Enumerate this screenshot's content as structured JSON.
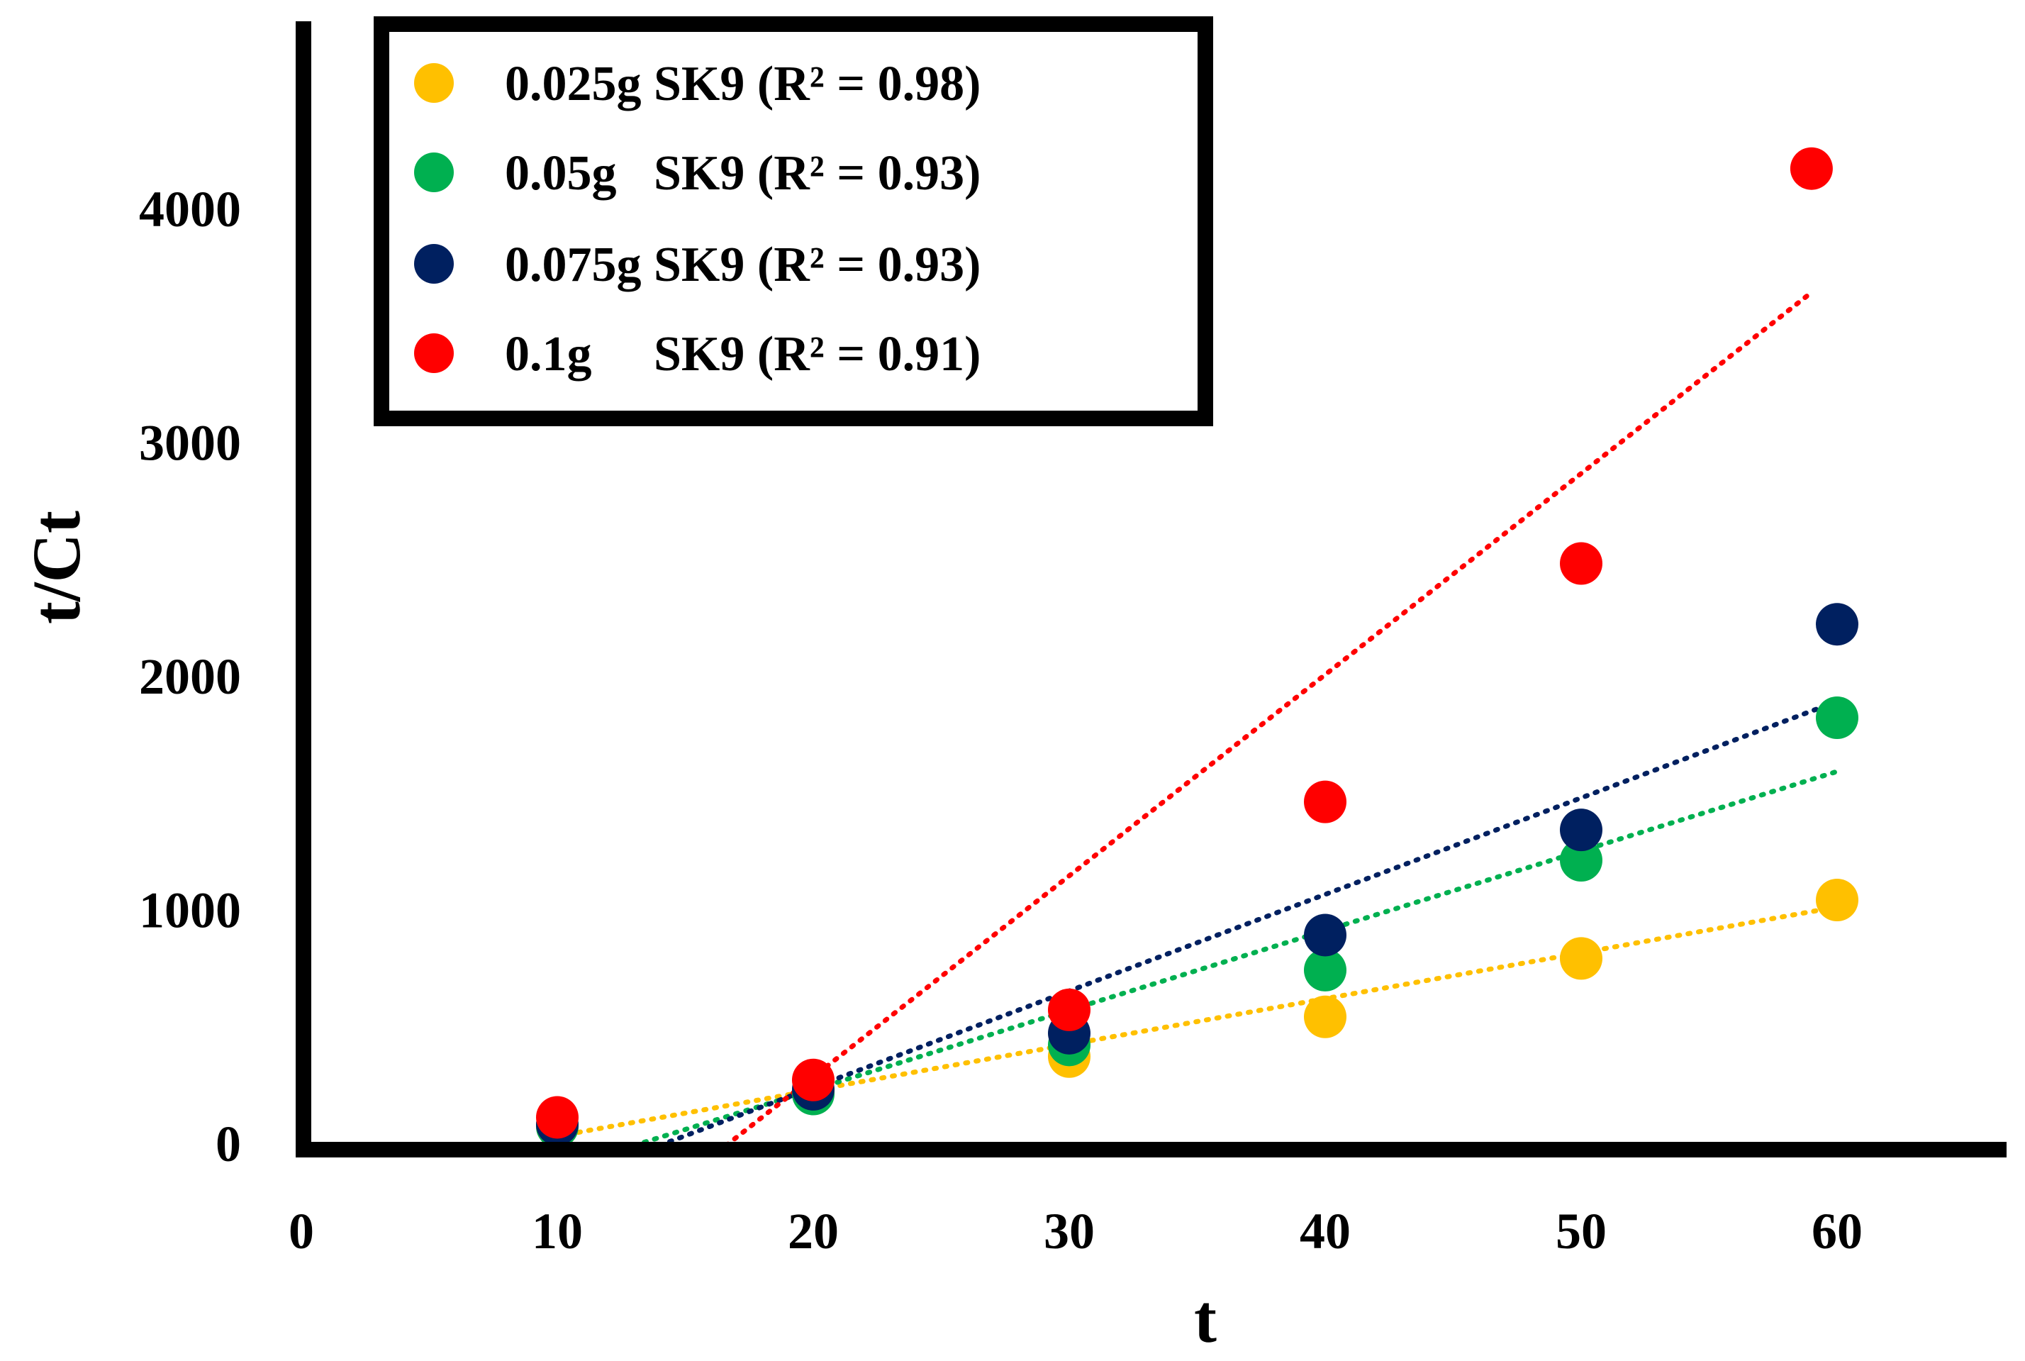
{
  "chart_data": {
    "type": "scatter",
    "title": "",
    "xlabel": "t",
    "ylabel": "t/Ct",
    "xlim": [
      0,
      66
    ],
    "ylim": [
      0,
      4800
    ],
    "xticks": [
      0,
      10,
      20,
      30,
      40,
      50,
      60
    ],
    "xtick_labels": [
      "0",
      "10",
      "20",
      "30",
      "40",
      "50",
      "60"
    ],
    "yticks": [
      0,
      1000,
      2000,
      3000,
      4000
    ],
    "ytick_labels": [
      "0",
      "1000",
      "2000",
      "3000",
      "4000"
    ],
    "grid": false,
    "legend_position": "top-left",
    "series": [
      {
        "name": "0.025g SK9",
        "legend_label": "0.025g SK9 (R² = 0.98)",
        "r2": 0.98,
        "color": "#FFC000",
        "x": [
          10,
          20,
          30,
          40,
          50,
          60
        ],
        "y": [
          80,
          230,
          380,
          550,
          800,
          1050
        ],
        "trendline": {
          "x": [
            10,
            60
          ],
          "y": [
            40,
            1020
          ]
        }
      },
      {
        "name": "0.05g SK9",
        "legend_label": "0.05g   SK9 (R² = 0.93)",
        "r2": 0.93,
        "color": "#00B050",
        "x": [
          10,
          20,
          30,
          40,
          50,
          60
        ],
        "y": [
          80,
          220,
          430,
          750,
          1220,
          1830
        ],
        "trendline": {
          "x": [
            13,
            60
          ],
          "y": [
            0,
            1600
          ]
        }
      },
      {
        "name": "0.075g SK9",
        "legend_label": "0.075g SK9 (R² = 0.93)",
        "r2": 0.93,
        "color": "#002060",
        "x": [
          10,
          20,
          30,
          40,
          50,
          60
        ],
        "y": [
          90,
          240,
          480,
          900,
          1350,
          2230
        ],
        "trendline": {
          "x": [
            14,
            60
          ],
          "y": [
            0,
            1900
          ]
        }
      },
      {
        "name": "0.1g SK9",
        "legend_label": "0.1g     SK9 (R² = 0.91)",
        "r2": 0.91,
        "color": "#FF0000",
        "x": [
          10,
          20,
          30,
          40,
          50,
          59
        ],
        "y": [
          120,
          280,
          580,
          1470,
          2490,
          4180
        ],
        "trendline": {
          "x": [
            16.6,
            59
          ],
          "y": [
            0,
            3650
          ]
        }
      }
    ]
  }
}
